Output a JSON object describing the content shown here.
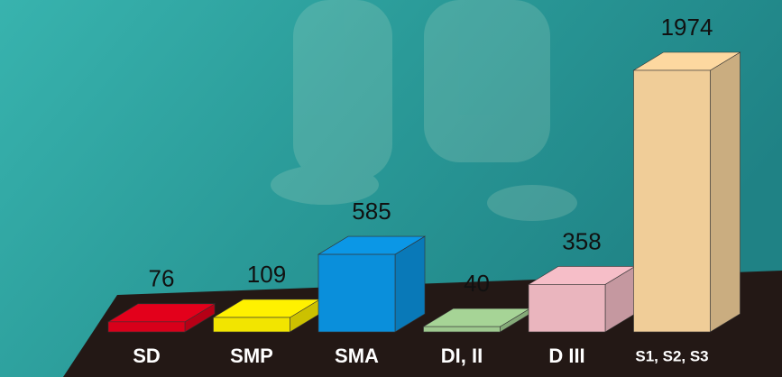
{
  "chart_data": {
    "type": "bar",
    "categories": [
      "SD",
      "SMP",
      "SMA",
      "DI, II",
      "D III",
      "S1, S2, S3"
    ],
    "values": [
      76,
      109,
      585,
      40,
      358,
      1974
    ],
    "colors": [
      "#e3001b",
      "#fff100",
      "#0b97e6",
      "#a6d496",
      "#f6bec8",
      "#fdd8a0"
    ]
  }
}
